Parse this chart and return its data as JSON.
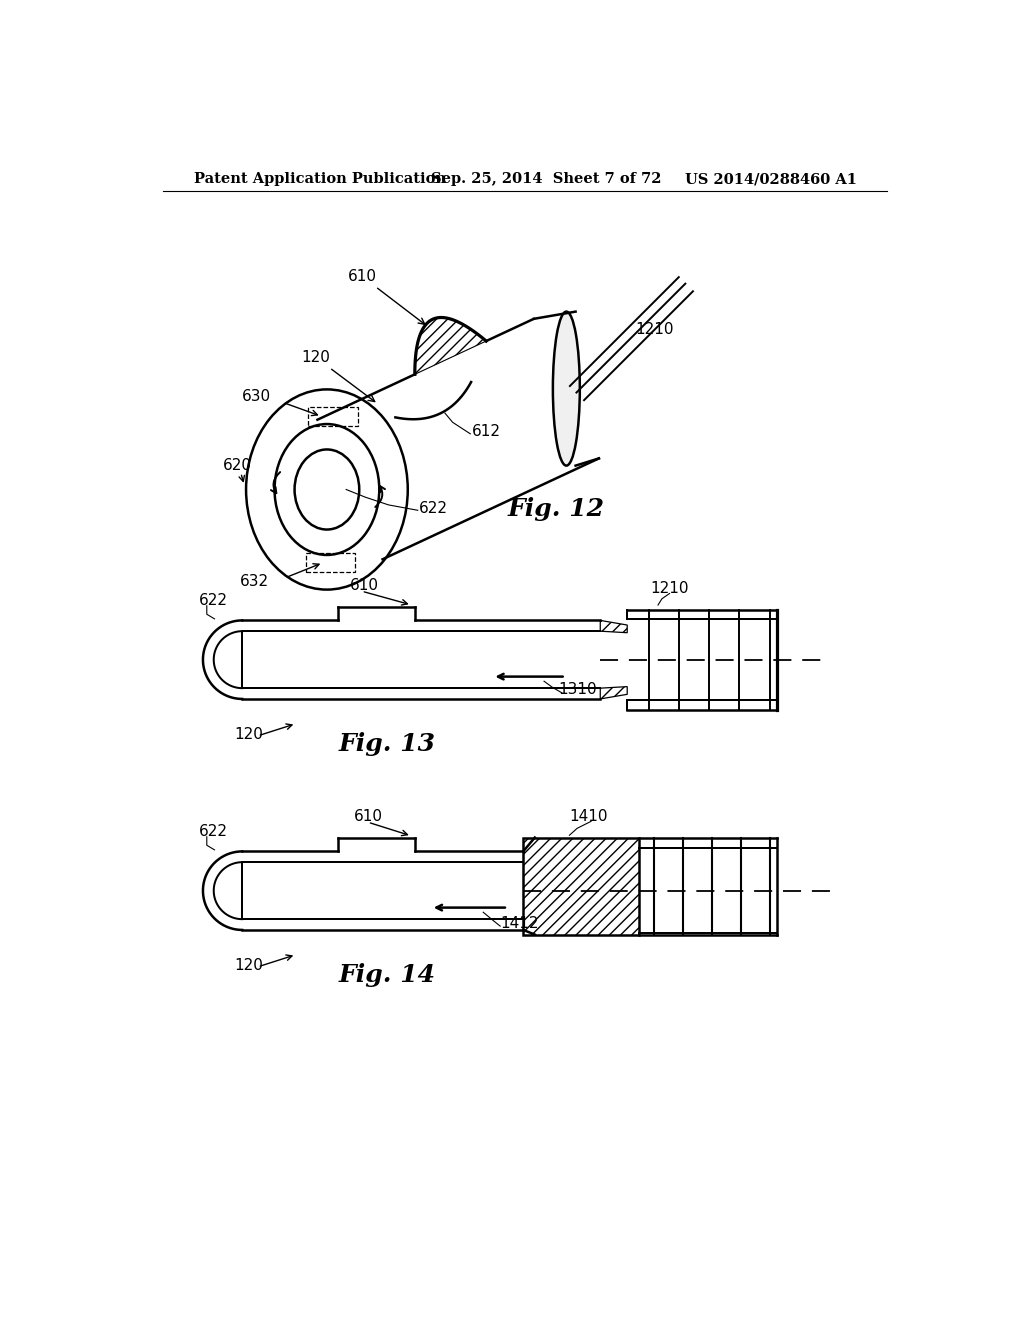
{
  "background_color": "#ffffff",
  "header_left": "Patent Application Publication",
  "header_center": "Sep. 25, 2014  Sheet 7 of 72",
  "header_right": "US 2014/0288460 A1",
  "header_fontsize": 10.5,
  "fig12_label": "Fig. 12",
  "fig13_label": "Fig. 13",
  "fig14_label": "Fig. 14",
  "label_fontsize": 18,
  "annotation_fontsize": 11,
  "text_color": "#000000",
  "line_color": "#000000",
  "line_width": 1.8
}
